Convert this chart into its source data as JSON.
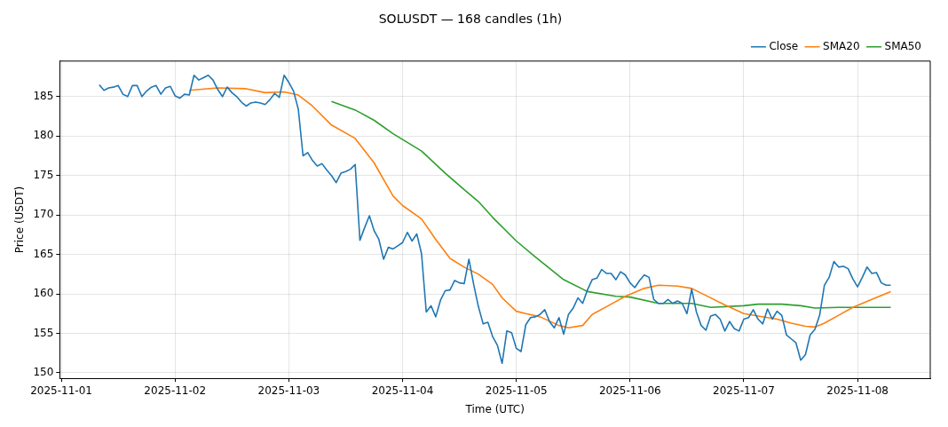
{
  "chart_data": {
    "type": "line",
    "title": "SOLUSDT — 168 candles (1h)",
    "xlabel": "Time (UTC)",
    "ylabel": "Price (USDT)",
    "x": [
      "2025-11-01T08:00",
      "2025-11-01T09:00",
      "2025-11-01T10:00",
      "2025-11-01T11:00",
      "2025-11-01T12:00",
      "2025-11-01T13:00",
      "2025-11-01T14:00",
      "2025-11-01T15:00",
      "2025-11-01T16:00",
      "2025-11-01T17:00",
      "2025-11-01T18:00",
      "2025-11-01T19:00",
      "2025-11-01T20:00",
      "2025-11-01T21:00",
      "2025-11-01T22:00",
      "2025-11-01T23:00",
      "2025-11-02T00:00",
      "2025-11-02T01:00",
      "2025-11-02T02:00",
      "2025-11-02T03:00",
      "2025-11-02T04:00",
      "2025-11-02T05:00",
      "2025-11-02T06:00",
      "2025-11-02T07:00",
      "2025-11-02T08:00",
      "2025-11-02T09:00",
      "2025-11-02T10:00",
      "2025-11-02T11:00",
      "2025-11-02T12:00",
      "2025-11-02T13:00",
      "2025-11-02T14:00",
      "2025-11-02T15:00",
      "2025-11-02T16:00",
      "2025-11-02T17:00",
      "2025-11-02T18:00",
      "2025-11-02T19:00",
      "2025-11-02T20:00",
      "2025-11-02T21:00",
      "2025-11-02T22:00",
      "2025-11-02T23:00",
      "2025-11-03T00:00",
      "2025-11-03T01:00",
      "2025-11-03T02:00",
      "2025-11-03T03:00",
      "2025-11-03T04:00",
      "2025-11-03T05:00",
      "2025-11-03T06:00",
      "2025-11-03T07:00",
      "2025-11-03T08:00",
      "2025-11-03T09:00",
      "2025-11-03T10:00",
      "2025-11-03T11:00",
      "2025-11-03T12:00",
      "2025-11-03T13:00",
      "2025-11-03T14:00",
      "2025-11-03T15:00",
      "2025-11-03T16:00",
      "2025-11-03T17:00",
      "2025-11-03T18:00",
      "2025-11-03T19:00",
      "2025-11-03T20:00",
      "2025-11-03T21:00",
      "2025-11-03T22:00",
      "2025-11-03T23:00",
      "2025-11-04T00:00",
      "2025-11-04T01:00",
      "2025-11-04T02:00",
      "2025-11-04T03:00",
      "2025-11-04T04:00",
      "2025-11-04T05:00",
      "2025-11-04T06:00",
      "2025-11-04T07:00",
      "2025-11-04T08:00",
      "2025-11-04T09:00",
      "2025-11-04T10:00",
      "2025-11-04T11:00",
      "2025-11-04T12:00",
      "2025-11-04T13:00",
      "2025-11-04T14:00",
      "2025-11-04T15:00",
      "2025-11-04T16:00",
      "2025-11-04T17:00",
      "2025-11-04T18:00",
      "2025-11-04T19:00",
      "2025-11-04T20:00",
      "2025-11-04T21:00",
      "2025-11-04T22:00",
      "2025-11-04T23:00",
      "2025-11-05T00:00",
      "2025-11-05T01:00",
      "2025-11-05T02:00",
      "2025-11-05T03:00",
      "2025-11-05T04:00",
      "2025-11-05T05:00",
      "2025-11-05T06:00",
      "2025-11-05T07:00",
      "2025-11-05T08:00",
      "2025-11-05T09:00",
      "2025-11-05T10:00",
      "2025-11-05T11:00",
      "2025-11-05T12:00",
      "2025-11-05T13:00",
      "2025-11-05T14:00",
      "2025-11-05T15:00",
      "2025-11-05T16:00",
      "2025-11-05T17:00",
      "2025-11-05T18:00",
      "2025-11-05T19:00",
      "2025-11-05T20:00",
      "2025-11-05T21:00",
      "2025-11-05T22:00",
      "2025-11-05T23:00",
      "2025-11-06T00:00",
      "2025-11-06T01:00",
      "2025-11-06T02:00",
      "2025-11-06T03:00",
      "2025-11-06T04:00",
      "2025-11-06T05:00",
      "2025-11-06T06:00",
      "2025-11-06T07:00",
      "2025-11-06T08:00",
      "2025-11-06T09:00",
      "2025-11-06T10:00",
      "2025-11-06T11:00",
      "2025-11-06T12:00",
      "2025-11-06T13:00",
      "2025-11-06T14:00",
      "2025-11-06T15:00",
      "2025-11-06T16:00",
      "2025-11-06T17:00",
      "2025-11-06T18:00",
      "2025-11-06T19:00",
      "2025-11-06T20:00",
      "2025-11-06T21:00",
      "2025-11-06T22:00",
      "2025-11-06T23:00",
      "2025-11-07T00:00",
      "2025-11-07T01:00",
      "2025-11-07T02:00",
      "2025-11-07T03:00",
      "2025-11-07T04:00",
      "2025-11-07T05:00",
      "2025-11-07T06:00",
      "2025-11-07T07:00",
      "2025-11-07T08:00",
      "2025-11-07T09:00",
      "2025-11-07T10:00",
      "2025-11-07T11:00",
      "2025-11-07T12:00",
      "2025-11-07T13:00",
      "2025-11-07T14:00",
      "2025-11-07T15:00",
      "2025-11-07T16:00",
      "2025-11-07T17:00",
      "2025-11-07T18:00",
      "2025-11-07T19:00",
      "2025-11-07T20:00",
      "2025-11-07T21:00",
      "2025-11-07T22:00",
      "2025-11-07T23:00",
      "2025-11-08T00:00",
      "2025-11-08T01:00",
      "2025-11-08T02:00",
      "2025-11-08T03:00",
      "2025-11-08T04:00",
      "2025-11-08T05:00",
      "2025-11-08T06:00",
      "2025-11-08T07:00"
    ],
    "series": [
      {
        "name": "Close",
        "color": "#1f77b4",
        "values": [
          186.5,
          185.8,
          186.1,
          186.2,
          186.4,
          185.3,
          185.0,
          186.4,
          186.4,
          185.0,
          185.7,
          186.2,
          186.4,
          185.3,
          186.1,
          186.3,
          185.1,
          184.8,
          185.3,
          185.2,
          187.7,
          187.1,
          187.4,
          187.7,
          187.1,
          185.9,
          185.0,
          186.2,
          185.5,
          185.0,
          184.3,
          183.8,
          184.2,
          184.3,
          184.2,
          184.0,
          184.6,
          185.4,
          184.9,
          187.7,
          186.8,
          185.7,
          183.4,
          177.5,
          177.9,
          176.9,
          176.2,
          176.5,
          175.7,
          175.0,
          174.1,
          175.3,
          175.5,
          175.8,
          176.4,
          166.8,
          168.4,
          169.9,
          168.0,
          166.9,
          164.4,
          165.9,
          165.7,
          166.1,
          166.5,
          167.8,
          166.7,
          167.6,
          165.1,
          157.7,
          158.5,
          157.1,
          159.2,
          160.4,
          160.5,
          161.7,
          161.4,
          161.3,
          164.4,
          161.2,
          158.4,
          156.2,
          156.4,
          154.6,
          153.5,
          151.2,
          155.3,
          155.1,
          153.1,
          152.7,
          156.1,
          157.0,
          157.1,
          157.4,
          158.0,
          156.5,
          155.7,
          157.0,
          154.9,
          157.4,
          158.2,
          159.5,
          158.8,
          160.5,
          161.8,
          162.0,
          163.1,
          162.6,
          162.6,
          161.8,
          162.8,
          162.4,
          161.4,
          160.8,
          161.7,
          162.4,
          162.1,
          159.3,
          158.8,
          158.8,
          159.3,
          158.8,
          159.1,
          158.8,
          157.5,
          160.6,
          157.7,
          156.0,
          155.4,
          157.2,
          157.4,
          156.8,
          155.3,
          156.5,
          155.6,
          155.3,
          156.8,
          157.0,
          158.0,
          156.8,
          156.2,
          158.1,
          156.8,
          157.8,
          157.3,
          154.8,
          154.3,
          153.8,
          151.6,
          152.3,
          154.8,
          155.5,
          157.3,
          161.1,
          162.1,
          164.1,
          163.4,
          163.5,
          163.2,
          161.9,
          160.9,
          162.1,
          163.4,
          162.6,
          162.7,
          161.4,
          161.1,
          161.1
        ]
      },
      {
        "name": "SMA20",
        "color": "#ff7f0e",
        "x": [
          "2025-11-02T03:00",
          "2025-11-02T09:00",
          "2025-11-02T15:00",
          "2025-11-02T19:00",
          "2025-11-02T23:00",
          "2025-11-03T02:00",
          "2025-11-03T05:00",
          "2025-11-03T09:00",
          "2025-11-03T14:00",
          "2025-11-03T18:00",
          "2025-11-03T22:00",
          "2025-11-04T00:00",
          "2025-11-04T04:00",
          "2025-11-04T07:00",
          "2025-11-04T10:00",
          "2025-11-04T13:00",
          "2025-11-04T16:00",
          "2025-11-04T19:00",
          "2025-11-04T21:00",
          "2025-11-05T00:00",
          "2025-11-05T02:00",
          "2025-11-05T05:00",
          "2025-11-05T09:00",
          "2025-11-05T11:00",
          "2025-11-05T14:00",
          "2025-11-05T16:00",
          "2025-11-05T20:00",
          "2025-11-05T23:00",
          "2025-11-06T03:00",
          "2025-11-06T06:00",
          "2025-11-06T10:00",
          "2025-11-06T13:00",
          "2025-11-06T16:00",
          "2025-11-06T20:00",
          "2025-11-07T00:00",
          "2025-11-07T03:00",
          "2025-11-07T07:00",
          "2025-11-07T10:00",
          "2025-11-07T13:00",
          "2025-11-07T15:00",
          "2025-11-07T17:00",
          "2025-11-07T20:00",
          "2025-11-07T23:00",
          "2025-11-08T03:00",
          "2025-11-08T07:00"
        ],
        "values": [
          185.8,
          186.1,
          186.0,
          185.5,
          185.6,
          185.2,
          183.8,
          181.4,
          179.7,
          176.6,
          172.4,
          171.2,
          169.5,
          166.9,
          164.5,
          163.4,
          162.5,
          161.2,
          159.5,
          157.8,
          157.5,
          157.1,
          156.0,
          155.7,
          156.0,
          157.4,
          158.7,
          159.7,
          160.7,
          161.1,
          161.0,
          160.7,
          159.8,
          158.6,
          157.5,
          157.2,
          156.8,
          156.3,
          155.9,
          155.8,
          156.3,
          157.3,
          158.3,
          159.3,
          160.3
        ]
      },
      {
        "name": "SMA50",
        "color": "#2ca02c",
        "x": [
          "2025-11-03T09:00",
          "2025-11-03T14:00",
          "2025-11-03T18:00",
          "2025-11-03T22:00",
          "2025-11-04T04:00",
          "2025-11-04T09:00",
          "2025-11-04T13:00",
          "2025-11-04T16:00",
          "2025-11-04T19:00",
          "2025-11-05T00:00",
          "2025-11-05T04:00",
          "2025-11-05T10:00",
          "2025-11-05T15:00",
          "2025-11-05T21:00",
          "2025-11-06T00:00",
          "2025-11-06T06:00",
          "2025-11-06T13:00",
          "2025-11-06T17:00",
          "2025-11-07T00:00",
          "2025-11-07T03:00",
          "2025-11-07T08:00",
          "2025-11-07T12:00",
          "2025-11-07T15:00",
          "2025-11-07T20:00",
          "2025-11-08T01:00",
          "2025-11-08T07:00"
        ],
        "values": [
          184.4,
          183.3,
          182.0,
          180.3,
          178.1,
          175.3,
          173.2,
          171.7,
          169.7,
          166.7,
          164.7,
          161.8,
          160.3,
          159.7,
          159.6,
          158.8,
          158.8,
          158.3,
          158.5,
          158.7,
          158.7,
          158.5,
          158.2,
          158.3,
          158.3,
          158.3
        ]
      }
    ],
    "xlim": [
      "2025-10-31T23:40",
      "2025-11-08T15:20"
    ],
    "xticks": [
      "2025-11-01",
      "2025-11-02",
      "2025-11-03",
      "2025-11-04",
      "2025-11-05",
      "2025-11-06",
      "2025-11-07",
      "2025-11-08"
    ],
    "ylim": [
      149.3,
      189.5
    ],
    "yticks": [
      150,
      155,
      160,
      165,
      170,
      175,
      180,
      185
    ],
    "grid": true,
    "legend": "top right",
    "marker": "none",
    "line_style": "solid"
  }
}
